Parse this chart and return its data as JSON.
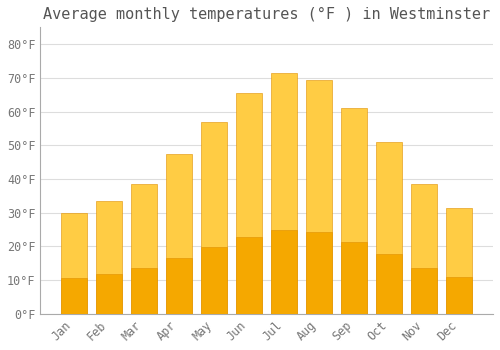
{
  "title": "Average monthly temperatures (°F ) in Westminster",
  "months": [
    "Jan",
    "Feb",
    "Mar",
    "Apr",
    "May",
    "Jun",
    "Jul",
    "Aug",
    "Sep",
    "Oct",
    "Nov",
    "Dec"
  ],
  "values": [
    30,
    33.5,
    38.5,
    47.5,
    57,
    65.5,
    71.5,
    69.5,
    61,
    51,
    38.5,
    31.5
  ],
  "bar_color_bottom": "#F5A800",
  "bar_color_top": "#FFCC44",
  "bar_edge_color": "#E09000",
  "background_color": "#FFFFFF",
  "plot_bg_color": "#FFFFFF",
  "grid_color": "#DDDDDD",
  "ylim": [
    0,
    85
  ],
  "yticks": [
    0,
    10,
    20,
    30,
    40,
    50,
    60,
    70,
    80
  ],
  "title_fontsize": 11,
  "tick_fontsize": 8.5,
  "font_family": "monospace",
  "title_color": "#555555",
  "tick_color": "#777777"
}
